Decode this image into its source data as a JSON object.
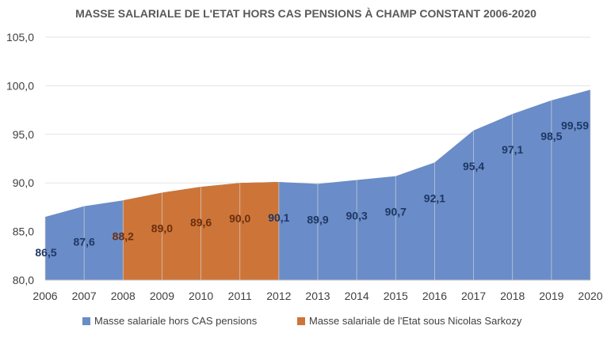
{
  "chart_data": {
    "type": "area",
    "title": "MASSE SALARIALE DE L'ETAT HORS CAS PENSIONS À CHAMP CONSTANT 2006-2020",
    "xlabel": "",
    "ylabel": "",
    "x": [
      "2006",
      "2007",
      "2008",
      "2009",
      "2010",
      "2011",
      "2012",
      "2013",
      "2014",
      "2015",
      "2016",
      "2017",
      "2018",
      "2019",
      "2020"
    ],
    "values": [
      86.5,
      87.6,
      88.2,
      89.0,
      89.6,
      90.0,
      90.1,
      89.9,
      90.3,
      90.7,
      92.1,
      95.4,
      97.1,
      98.5,
      99.59
    ],
    "data_labels": [
      "86,5",
      "87,6",
      "88,2",
      "89,0",
      "89,6",
      "90,0",
      "90,1",
      "89,9",
      "90,3",
      "90,7",
      "92,1",
      "95,4",
      "97,1",
      "98,5",
      "99,59"
    ],
    "highlight_range": [
      "2008",
      "2012"
    ],
    "ylim": [
      80,
      105
    ],
    "y_ticks": [
      80,
      85,
      90,
      95,
      100,
      105
    ],
    "y_tick_labels": [
      "80,0",
      "85,0",
      "90,0",
      "95,0",
      "100,0",
      "105,0"
    ],
    "grid": true,
    "legend_position": "bottom",
    "series": [
      {
        "name": "Masse salariale hors CAS pensions",
        "color": "#6a8cc8",
        "label_color": "#1f3864"
      },
      {
        "name": "Masse salariale de l'Etat sous Nicolas Sarkozy",
        "color": "#cd7539",
        "label_color": "#6b2f0e"
      }
    ]
  }
}
